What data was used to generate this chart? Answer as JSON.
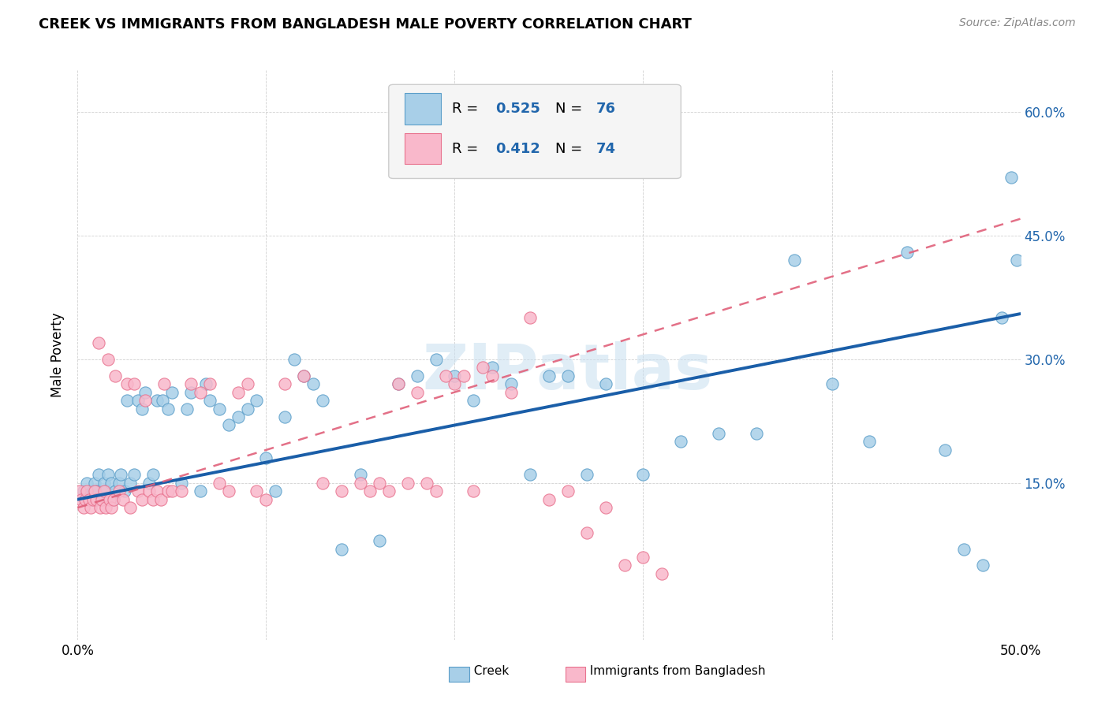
{
  "title": "CREEK VS IMMIGRANTS FROM BANGLADESH MALE POVERTY CORRELATION CHART",
  "source": "Source: ZipAtlas.com",
  "ylabel": "Male Poverty",
  "xlim": [
    0.0,
    0.5
  ],
  "ylim": [
    -0.04,
    0.65
  ],
  "ytick_positions": [
    0.15,
    0.3,
    0.45,
    0.6
  ],
  "ytick_labels": [
    "15.0%",
    "30.0%",
    "45.0%",
    "60.0%"
  ],
  "creek_color": "#a8cfe8",
  "creek_edge_color": "#5b9ec9",
  "bangladesh_color": "#f9b8cb",
  "bangladesh_edge_color": "#e8728e",
  "creek_line_color": "#1a5ea8",
  "bangladesh_line_color": "#e0607a",
  "watermark": "ZIPatlas",
  "legend_box_color": "#f0f0f0",
  "legend_blue": "#2166ac",
  "creek_x": [
    0.003,
    0.005,
    0.007,
    0.008,
    0.009,
    0.01,
    0.011,
    0.012,
    0.014,
    0.015,
    0.016,
    0.018,
    0.019,
    0.02,
    0.022,
    0.023,
    0.025,
    0.026,
    0.028,
    0.03,
    0.032,
    0.034,
    0.036,
    0.038,
    0.04,
    0.042,
    0.045,
    0.048,
    0.05,
    0.055,
    0.058,
    0.06,
    0.065,
    0.068,
    0.07,
    0.075,
    0.08,
    0.085,
    0.09,
    0.095,
    0.1,
    0.105,
    0.11,
    0.115,
    0.12,
    0.125,
    0.13,
    0.14,
    0.15,
    0.16,
    0.17,
    0.18,
    0.19,
    0.2,
    0.21,
    0.22,
    0.23,
    0.24,
    0.25,
    0.26,
    0.27,
    0.28,
    0.3,
    0.32,
    0.34,
    0.36,
    0.38,
    0.4,
    0.42,
    0.44,
    0.46,
    0.47,
    0.48,
    0.49,
    0.495,
    0.498
  ],
  "creek_y": [
    0.14,
    0.15,
    0.13,
    0.14,
    0.15,
    0.14,
    0.16,
    0.13,
    0.15,
    0.14,
    0.16,
    0.15,
    0.13,
    0.14,
    0.15,
    0.16,
    0.14,
    0.25,
    0.15,
    0.16,
    0.25,
    0.24,
    0.26,
    0.15,
    0.16,
    0.25,
    0.25,
    0.24,
    0.26,
    0.15,
    0.24,
    0.26,
    0.14,
    0.27,
    0.25,
    0.24,
    0.22,
    0.23,
    0.24,
    0.25,
    0.18,
    0.14,
    0.23,
    0.3,
    0.28,
    0.27,
    0.25,
    0.07,
    0.16,
    0.08,
    0.27,
    0.28,
    0.3,
    0.28,
    0.25,
    0.29,
    0.27,
    0.16,
    0.28,
    0.28,
    0.16,
    0.27,
    0.16,
    0.2,
    0.21,
    0.21,
    0.42,
    0.27,
    0.2,
    0.43,
    0.19,
    0.07,
    0.05,
    0.35,
    0.52,
    0.42
  ],
  "bangladesh_x": [
    0.001,
    0.002,
    0.003,
    0.004,
    0.005,
    0.006,
    0.007,
    0.008,
    0.009,
    0.01,
    0.011,
    0.012,
    0.013,
    0.014,
    0.015,
    0.016,
    0.017,
    0.018,
    0.019,
    0.02,
    0.022,
    0.024,
    0.026,
    0.028,
    0.03,
    0.032,
    0.034,
    0.036,
    0.038,
    0.04,
    0.042,
    0.044,
    0.046,
    0.048,
    0.05,
    0.055,
    0.06,
    0.065,
    0.07,
    0.075,
    0.08,
    0.085,
    0.09,
    0.095,
    0.1,
    0.11,
    0.12,
    0.13,
    0.14,
    0.15,
    0.155,
    0.16,
    0.165,
    0.17,
    0.175,
    0.18,
    0.185,
    0.19,
    0.195,
    0.2,
    0.205,
    0.21,
    0.215,
    0.22,
    0.23,
    0.24,
    0.25,
    0.26,
    0.27,
    0.28,
    0.29,
    0.3,
    0.31
  ],
  "bangladesh_y": [
    0.14,
    0.13,
    0.12,
    0.13,
    0.14,
    0.13,
    0.12,
    0.13,
    0.14,
    0.13,
    0.32,
    0.12,
    0.13,
    0.14,
    0.12,
    0.3,
    0.13,
    0.12,
    0.13,
    0.28,
    0.14,
    0.13,
    0.27,
    0.12,
    0.27,
    0.14,
    0.13,
    0.25,
    0.14,
    0.13,
    0.14,
    0.13,
    0.27,
    0.14,
    0.14,
    0.14,
    0.27,
    0.26,
    0.27,
    0.15,
    0.14,
    0.26,
    0.27,
    0.14,
    0.13,
    0.27,
    0.28,
    0.15,
    0.14,
    0.15,
    0.14,
    0.15,
    0.14,
    0.27,
    0.15,
    0.26,
    0.15,
    0.14,
    0.28,
    0.27,
    0.28,
    0.14,
    0.29,
    0.28,
    0.26,
    0.35,
    0.13,
    0.14,
    0.09,
    0.12,
    0.05,
    0.06,
    0.04
  ]
}
